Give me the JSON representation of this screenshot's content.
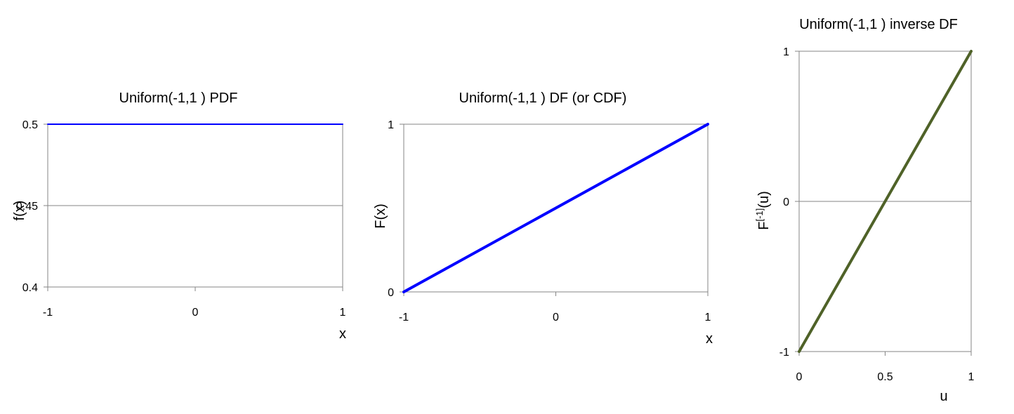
{
  "colors": {
    "blue": "#0000ff",
    "olive": "#4f6228",
    "axis": "#868686",
    "grid": "#868686"
  },
  "chart_data": [
    {
      "type": "line",
      "title": "Uniform(-1,1 ) PDF",
      "xlabel": "x",
      "ylabel": "f(x)",
      "xlim": [
        -1,
        1
      ],
      "ylim": [
        0.4,
        0.5
      ],
      "x_ticks": [
        "-1",
        "0",
        "1"
      ],
      "y_ticks": [
        "0.4",
        "0.45",
        "0.5"
      ],
      "grid": "horizontal",
      "series": [
        {
          "color": "#0000ff",
          "x": [
            -1,
            1
          ],
          "y": [
            0.5,
            0.5
          ]
        }
      ]
    },
    {
      "type": "line",
      "title": "Uniform(-1,1 ) DF (or CDF)",
      "xlabel": "x",
      "ylabel": "F(x)",
      "xlim": [
        -1,
        1
      ],
      "ylim": [
        0,
        1
      ],
      "x_ticks": [
        "-1",
        "0",
        "1"
      ],
      "y_ticks": [
        "0",
        "1"
      ],
      "grid": "horizontal",
      "series": [
        {
          "color": "#0000ff",
          "x": [
            -1,
            1
          ],
          "y": [
            0,
            1
          ]
        }
      ]
    },
    {
      "type": "line",
      "title": "Uniform(-1,1 ) inverse DF",
      "xlabel": "u",
      "ylabel": "F[-1](u)",
      "xlim": [
        0,
        1
      ],
      "ylim": [
        -1,
        1
      ],
      "x_ticks": [
        "0",
        "0.5",
        "1"
      ],
      "y_ticks": [
        "-1",
        "0",
        "1"
      ],
      "grid": "horizontal",
      "series": [
        {
          "color": "#4f6228",
          "x": [
            0,
            1
          ],
          "y": [
            -1,
            1
          ]
        }
      ]
    }
  ]
}
